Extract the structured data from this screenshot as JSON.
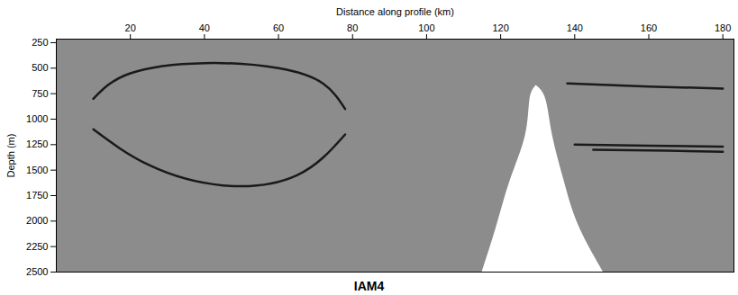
{
  "chart_data": {
    "type": "seismic_section",
    "xlabel": "Distance along profile (km)",
    "ylabel": "Depth (m)",
    "caption": "IAM4",
    "xlim": [
      0,
      183
    ],
    "ylim": [
      215,
      2500
    ],
    "xticks": [
      20,
      40,
      60,
      80,
      100,
      120,
      140,
      160,
      180
    ],
    "yticks": [
      250,
      500,
      750,
      1000,
      1250,
      1500,
      1750,
      2000,
      2250,
      2500
    ],
    "color": "#8c8c8c",
    "masked_region": {
      "depth": [
        670,
        806,
        1158,
        1600,
        2040,
        2500
      ],
      "x_left": [
        129.6,
        127.9,
        126.7,
        122.6,
        119,
        115
      ],
      "x_right": [
        129.6,
        132.2,
        134,
        137.1,
        141,
        147.7
      ]
    },
    "reflectors": [
      {
        "x": [
          10,
          20,
          40,
          60,
          72,
          78
        ],
        "y": [
          800,
          550,
          450,
          500,
          650,
          900
        ]
      },
      {
        "x": [
          10,
          25,
          45,
          65,
          78
        ],
        "y": [
          1100,
          1450,
          1650,
          1550,
          1150
        ]
      },
      {
        "x": [
          140,
          160,
          180
        ],
        "y": [
          1250,
          1260,
          1270
        ]
      },
      {
        "x": [
          145,
          165,
          180
        ],
        "y": [
          1300,
          1310,
          1320
        ]
      },
      {
        "x": [
          138,
          160,
          180
        ],
        "y": [
          650,
          680,
          700
        ]
      }
    ]
  }
}
